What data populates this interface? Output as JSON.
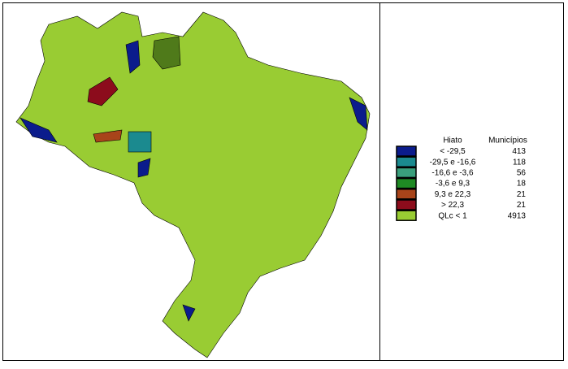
{
  "legend": {
    "headers": [
      "Hiato",
      "Municípios"
    ],
    "items": [
      {
        "label": "< -29,5",
        "count": "413",
        "color": "#0b1c8c"
      },
      {
        "label": "-29,5 e -16,6",
        "count": "118",
        "color": "#1b8a8f"
      },
      {
        "label": "-16,6 e -3,6",
        "count": "56",
        "color": "#3a9f7c"
      },
      {
        "label": "-3,6 e 9,3",
        "count": "18",
        "color": "#1f8a24"
      },
      {
        "label": "9,3 e 22,3",
        "count": "21",
        "color": "#a8441a"
      },
      {
        "label": "> 22,3",
        "count": "21",
        "color": "#8c0c1c"
      },
      {
        "label": "QLc < 1",
        "count": "4913",
        "color": "#99cc33"
      }
    ]
  }
}
